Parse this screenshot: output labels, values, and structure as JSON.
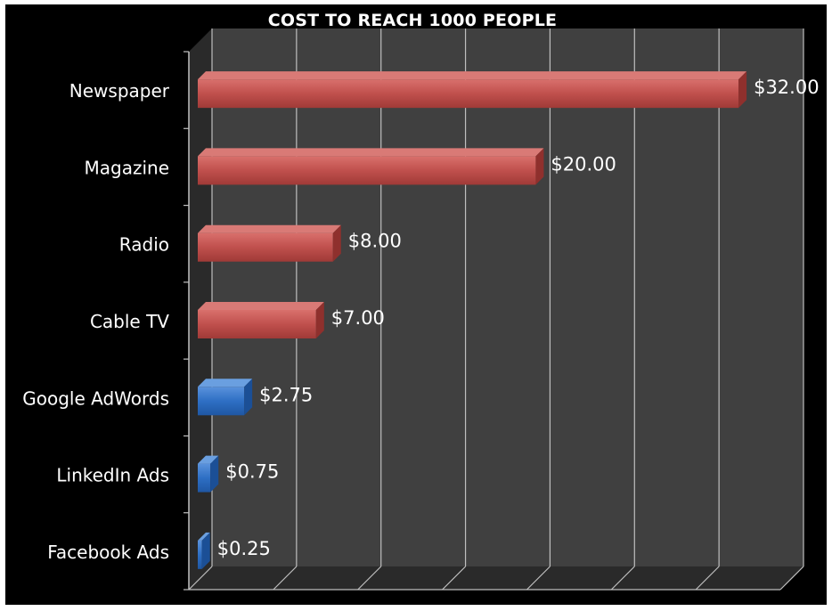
{
  "chart_data": {
    "type": "bar",
    "orientation": "horizontal",
    "title": "COST TO REACH 1000 PEOPLE",
    "categories": [
      "Newspaper",
      "Magazine",
      "Radio",
      "Cable TV",
      "Google AdWords",
      "LinkedIn Ads",
      "Facebook Ads"
    ],
    "values": [
      32.0,
      20.0,
      8.0,
      7.0,
      2.75,
      0.75,
      0.25
    ],
    "value_labels": [
      "$32.00",
      "$20.00",
      "$8.00",
      "$7.00",
      "$2.75",
      "$0.75",
      "$0.25"
    ],
    "bar_colors": [
      "#c0504d",
      "#c0504d",
      "#c0504d",
      "#c0504d",
      "#2e6fc4",
      "#2e6fc4",
      "#2e6fc4"
    ],
    "xlim": [
      0,
      35
    ],
    "grid": true,
    "legend": "none",
    "style": "3d"
  },
  "colors": {
    "background": "#000000",
    "plot_back": "#404040",
    "plot_floor": "#2a2a2a",
    "grid": "#bfbfbf",
    "red": "#c0504d",
    "blue": "#2e6fc4"
  }
}
